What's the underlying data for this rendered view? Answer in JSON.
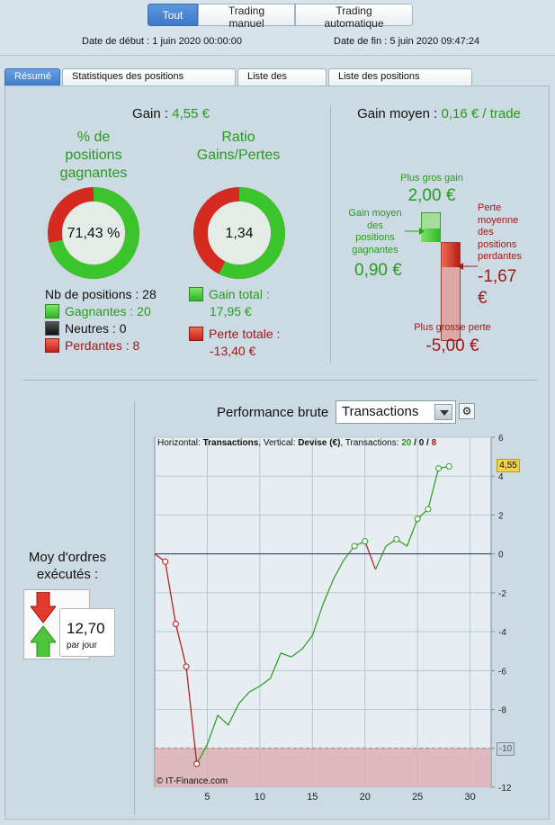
{
  "topbar": {
    "buttons": [
      "Tout",
      "Trading manuel",
      "Trading automatique"
    ],
    "start_label": "Date de début :",
    "start_value": "1 juin 2020 00:00:00",
    "end_label": "Date de fin :",
    "end_value": "5 juin 2020 09:47:24"
  },
  "tabs": [
    "Résumé",
    "Statistiques des positions clôturées",
    "Liste des ordres",
    "Liste des positions clôturées"
  ],
  "summary": {
    "gain_label": "Gain :",
    "gain_value": "4,55 €",
    "pct_title_1": "% de",
    "pct_title_2": "positions",
    "pct_title_3": "gagnantes",
    "pct_value": "71,43 %",
    "pct_fraction": 0.7143,
    "ratio_title_1": "Ratio",
    "ratio_title_2": "Gains/Pertes",
    "ratio_value": "1,34",
    "ratio_fraction": 0.5725,
    "nb_positions": "Nb de positions : 28",
    "gagnantes": "Gagnantes : 20",
    "neutres": "Neutres : 0",
    "perdantes": "Perdantes : 8",
    "gain_total_label": "Gain total :",
    "gain_total_value": "17,95 €",
    "perte_totale_label": "Perte totale :",
    "perte_totale_value": "-13,40 €"
  },
  "average": {
    "title_label": "Gain moyen :",
    "title_value": "0,16 € / trade",
    "plus_gros_gain_label": "Plus gros gain",
    "plus_gros_gain_value": "2,00 €",
    "gain_moyen_lines": [
      "Gain moyen",
      "des",
      "positions",
      "gagnantes"
    ],
    "gain_moyen_value": "0,90 €",
    "perte_moyenne_lines": [
      "Perte",
      "moyenne",
      "des",
      "positions",
      "perdantes"
    ],
    "perte_moyenne_value_1": "-1,67",
    "perte_moyenne_value_2": "€",
    "plus_grosse_perte_label": "Plus grosse perte",
    "plus_grosse_perte_value": "-5,00 €"
  },
  "orders": {
    "title_1": "Moy d'ordres",
    "title_2": "exécutés :",
    "value": "12,70",
    "unit": "par jour"
  },
  "performance": {
    "title": "Performance brute",
    "selected": "Transactions",
    "header_prefix": "Horizontal: ",
    "header_h": "Transactions",
    "header_mid": ", Vertical: ",
    "header_v": "Devise (€)",
    "header_tx": ", Transactions: ",
    "header_green": "20",
    "header_sep1": " / ",
    "header_black": "0",
    "header_sep2": " / ",
    "header_red": "8",
    "copyright": "© IT-Finance.com",
    "last_label": "4,55",
    "threshold_label": "-10"
  },
  "chart_data": {
    "type": "line",
    "x_ticks": [
      5,
      10,
      15,
      20,
      25,
      30
    ],
    "y_ticks": [
      6,
      4,
      2,
      0,
      -2,
      -4,
      -6,
      -8,
      -10,
      -12
    ],
    "xlim": [
      0,
      32
    ],
    "ylim": [
      -12,
      6
    ],
    "loss_zone_below": -10,
    "series": [
      {
        "points": [
          [
            0,
            0
          ],
          [
            1,
            -0.4
          ],
          [
            2,
            -3.6
          ],
          [
            3,
            -5.8
          ],
          [
            4,
            -10.8
          ]
        ],
        "color": "#b01515"
      },
      {
        "points": [
          [
            4,
            -10.8
          ],
          [
            5,
            -9.8
          ],
          [
            6,
            -8.3
          ],
          [
            7,
            -8.8
          ],
          [
            8,
            -7.7
          ],
          [
            9,
            -7.1
          ],
          [
            10,
            -6.8
          ],
          [
            11,
            -6.4
          ],
          [
            12,
            -5.1
          ],
          [
            13,
            -5.3
          ],
          [
            14,
            -4.9
          ],
          [
            15,
            -4.2
          ],
          [
            16,
            -2.6
          ],
          [
            17,
            -1.3
          ],
          [
            18,
            -0.3
          ],
          [
            19,
            0.4
          ],
          [
            20,
            0.65
          ]
        ],
        "color": "#2a9a1e"
      },
      {
        "points": [
          [
            20,
            0.65
          ],
          [
            21,
            -0.8
          ]
        ],
        "color": "#b01515"
      },
      {
        "points": [
          [
            21,
            -0.8
          ],
          [
            22,
            0.4
          ],
          [
            23,
            0.75
          ],
          [
            24,
            0.4
          ],
          [
            25,
            1.8
          ],
          [
            26,
            2.3
          ],
          [
            27,
            4.4
          ],
          [
            28,
            4.5
          ]
        ],
        "color": "#2a9a1e"
      }
    ],
    "markers": [
      [
        1,
        -0.4
      ],
      [
        2,
        -3.6
      ],
      [
        3,
        -5.8
      ],
      [
        4,
        -10.8
      ],
      [
        19,
        0.4
      ],
      [
        20,
        0.65
      ],
      [
        23,
        0.75
      ],
      [
        25,
        1.8
      ],
      [
        26,
        2.3
      ],
      [
        27,
        4.4
      ],
      [
        28,
        4.5
      ]
    ]
  },
  "colors": {
    "green": "#2a9a1e",
    "red": "#a31818",
    "accent": "#3d79c9"
  }
}
